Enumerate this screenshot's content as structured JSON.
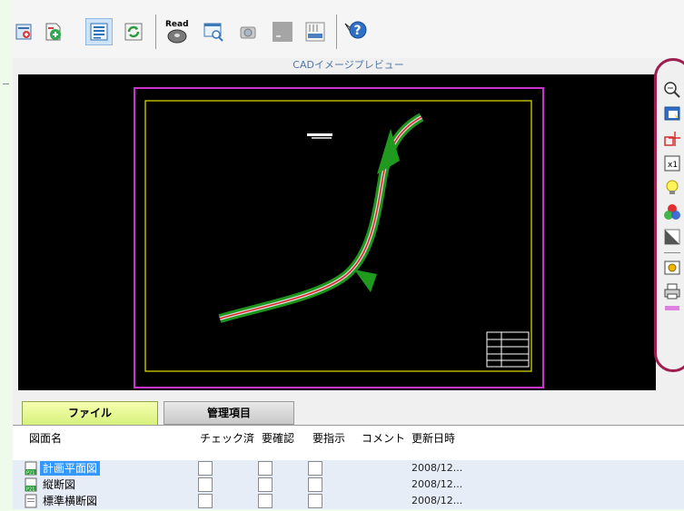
{
  "toolbar": {
    "read_label": "Read"
  },
  "preview": {
    "title": "CADイメージプレビュー"
  },
  "tabs": [
    {
      "label": "ファイル",
      "active": true
    },
    {
      "label": "管理項目",
      "active": false
    }
  ],
  "file_list": {
    "headers": [
      "図面名",
      "チェック済",
      "要確認",
      "要指示",
      "コメント",
      "更新日時"
    ],
    "rows": [
      {
        "name": "計画平面図",
        "date": "2008/12...",
        "selected": true
      },
      {
        "name": "縦断図",
        "date": "2008/12...",
        "selected": false
      },
      {
        "name": "標準横断図",
        "date": "2008/12...",
        "selected": false
      }
    ]
  },
  "colors": {
    "highlight_ring": "#9d1d4f",
    "canvas_bg": "#000000",
    "sheet_border": "#cc33cc",
    "inner_frame": "#e6e600",
    "selection": "#3399ff"
  },
  "icons": {
    "toolbar": [
      "print-preview-icon",
      "add-drawing-icon",
      "list-view-icon",
      "refresh-icon",
      "read-disk-icon",
      "search-window-icon",
      "camera-icon",
      "blank-icon",
      "ruler-icon",
      "help-icon"
    ],
    "side": [
      "zoom-icon",
      "fit-window-icon",
      "pan-icon",
      "actual-size-icon",
      "bulb-icon",
      "color-icon",
      "grayscale-icon",
      "export-icon",
      "print-icon"
    ]
  }
}
